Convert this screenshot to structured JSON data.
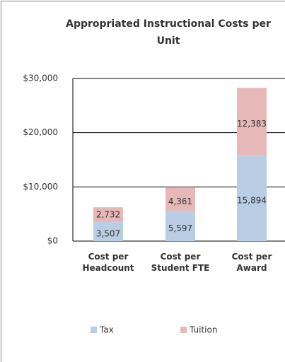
{
  "chart_data": {
    "type": "stacked-bar",
    "title": "Appropriated Instructional Costs per Unit",
    "categories": [
      "Cost per Headcount",
      "Cost per Student FTE",
      "Cost per Award"
    ],
    "series": [
      {
        "name": "Tax",
        "color": "#b9cde5",
        "values": [
          3507,
          5597,
          15894
        ],
        "value_labels": [
          "3,507",
          "5,597",
          "15,894"
        ]
      },
      {
        "name": "Tuition",
        "color": "#e6b9b8",
        "values": [
          2732,
          4361,
          12383
        ],
        "value_labels": [
          "2,732",
          "4,361",
          "12,383"
        ]
      }
    ],
    "ylim": [
      0,
      30000
    ],
    "yticks": [
      {
        "value": 0,
        "label": "$0"
      },
      {
        "value": 10000,
        "label": "$10,000"
      },
      {
        "value": 20000,
        "label": "$20,000"
      },
      {
        "value": 30000,
        "label": "$30,000"
      }
    ],
    "grid": true,
    "legend": "bottom"
  }
}
